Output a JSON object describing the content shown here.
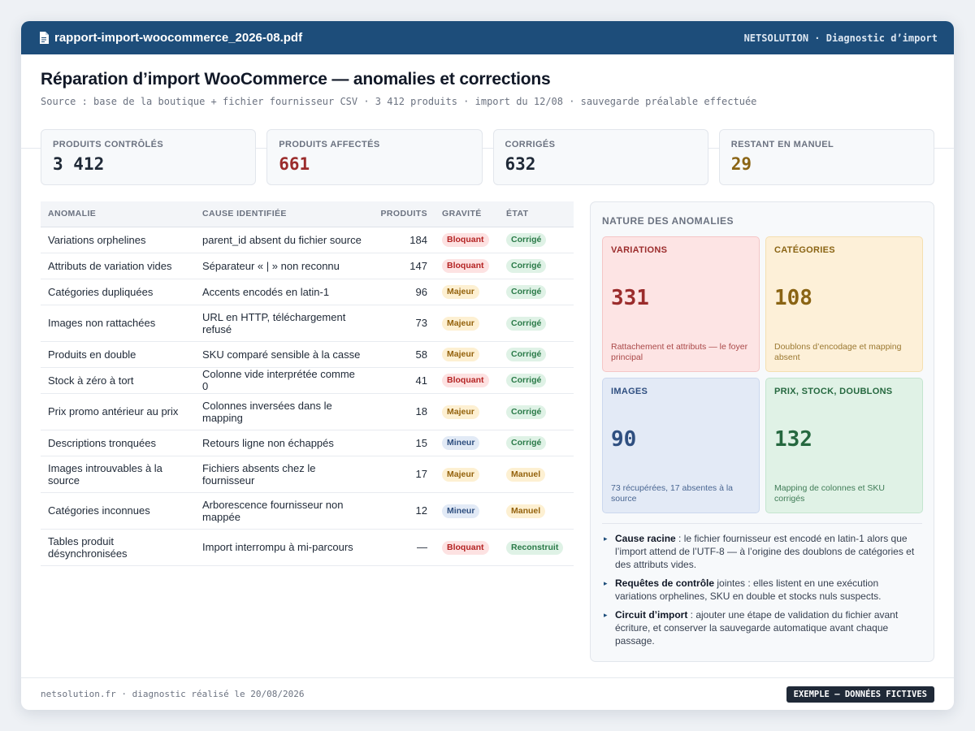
{
  "window": {
    "filename": "rapport-import-woocommerce_2026-08.pdf",
    "brand": "NETSOLUTION · Diagnostic d’import"
  },
  "header": {
    "title": "Réparation d’import WooCommerce — anomalies et corrections",
    "subtitle": "Source : base de la boutique + fichier fournisseur CSV · 3 412 produits · import du 12/08 · sauvegarde préalable effectuée"
  },
  "stats": [
    {
      "label": "PRODUITS CONTRÔLÉS",
      "value": "3 412",
      "color": "#1f2937"
    },
    {
      "label": "PRODUITS AFFECTÉS",
      "value": "661",
      "color": "#9b2c2c"
    },
    {
      "label": "CORRIGÉS",
      "value": "632",
      "color": "#1f2937"
    },
    {
      "label": "RESTANT EN MANUEL",
      "value": "29",
      "color": "#8a6414"
    }
  ],
  "table": {
    "headers": {
      "anomaly": "ANOMALIE",
      "cause": "CAUSE IDENTIFIÉE",
      "products": "PRODUITS",
      "severity": "GRAVITÉ",
      "status": "ÉTAT"
    },
    "rows": [
      {
        "anomaly": "Variations orphelines",
        "cause": "parent_id absent du fichier source",
        "products": "184",
        "severity": "Bloquant",
        "status": "Corrigé"
      },
      {
        "anomaly": "Attributs de variation vides",
        "cause": "Séparateur « | » non reconnu",
        "products": "147",
        "severity": "Bloquant",
        "status": "Corrigé"
      },
      {
        "anomaly": "Catégories dupliquées",
        "cause": "Accents encodés en latin-1",
        "products": "96",
        "severity": "Majeur",
        "status": "Corrigé"
      },
      {
        "anomaly": "Images non rattachées",
        "cause": "URL en HTTP, téléchargement refusé",
        "products": "73",
        "severity": "Majeur",
        "status": "Corrigé"
      },
      {
        "anomaly": "Produits en double",
        "cause": "SKU comparé sensible à la casse",
        "products": "58",
        "severity": "Majeur",
        "status": "Corrigé"
      },
      {
        "anomaly": "Stock à zéro à tort",
        "cause": "Colonne vide interprétée comme 0",
        "products": "41",
        "severity": "Bloquant",
        "status": "Corrigé"
      },
      {
        "anomaly": "Prix promo antérieur au prix",
        "cause": "Colonnes inversées dans le mapping",
        "products": "18",
        "severity": "Majeur",
        "status": "Corrigé"
      },
      {
        "anomaly": "Descriptions tronquées",
        "cause": "Retours ligne non échappés",
        "products": "15",
        "severity": "Mineur",
        "status": "Corrigé"
      },
      {
        "anomaly": "Images introuvables à la source",
        "cause": "Fichiers absents chez le fournisseur",
        "products": "17",
        "severity": "Majeur",
        "status": "Manuel"
      },
      {
        "anomaly": "Catégories inconnues",
        "cause": "Arborescence fournisseur non mappée",
        "products": "12",
        "severity": "Mineur",
        "status": "Manuel"
      },
      {
        "anomaly": "Tables produit désynchronisées",
        "cause": "Import interrompu à mi-parcours",
        "products": "—",
        "severity": "Bloquant",
        "status": "Reconstruit"
      }
    ]
  },
  "badge_colors": {
    "Bloquant": {
      "bg": "#fde2e2",
      "fg": "#b42323"
    },
    "Majeur": {
      "bg": "#fdf0d2",
      "fg": "#94620c"
    },
    "Mineur": {
      "bg": "#e2eaf6",
      "fg": "#2f4f80"
    },
    "Corrigé": {
      "bg": "#dff2e6",
      "fg": "#2a7a48"
    },
    "Manuel": {
      "bg": "#fdf0d2",
      "fg": "#94620c"
    },
    "Reconstruit": {
      "bg": "#dff2e6",
      "fg": "#2a7a48"
    }
  },
  "panel": {
    "title": "NATURE DES ANOMALIES",
    "tiles": [
      {
        "label": "VARIATIONS",
        "value": "331",
        "desc": "Rattachement et attributs — le foyer principal",
        "bg": "#fde4e4",
        "border": "#f5c6c6",
        "fg": "#9b2c2c"
      },
      {
        "label": "CATÉGORIES",
        "value": "108",
        "desc": "Doublons d’encodage et mapping absent",
        "bg": "#fdf0d8",
        "border": "#f4dfb0",
        "fg": "#8a6414"
      },
      {
        "label": "IMAGES",
        "value": "90",
        "desc": "73 récupérées, 17 absentes à la source",
        "bg": "#e3eaf6",
        "border": "#cbd8ee",
        "fg": "#2f4f80"
      },
      {
        "label": "PRIX, STOCK, DOUBLONS",
        "value": "132",
        "desc": "Mapping de colonnes et SKU corrigés",
        "bg": "#e0f2e6",
        "border": "#c4e5cf",
        "fg": "#25683f"
      }
    ],
    "notes": [
      {
        "strong": "Cause racine",
        "text": " : le fichier fournisseur est encodé en latin-1 alors que l’import attend de l’UTF-8 — à l’origine des doublons de catégories et des attributs vides."
      },
      {
        "strong": "Requêtes de contrôle",
        "text": " jointes : elles listent en une exécution variations orphelines, SKU en double et stocks nuls suspects."
      },
      {
        "strong": "Circuit d’import",
        "text": " : ajouter une étape de validation du fichier avant écriture, et conserver la sauvegarde automatique avant chaque passage."
      }
    ]
  },
  "footer": {
    "text": "netsolution.fr · diagnostic réalisé le 20/08/2026",
    "badge": "EXEMPLE — DONNÉES FICTIVES"
  },
  "icons": {
    "file": "document-icon",
    "note": "triangle-right-icon"
  }
}
